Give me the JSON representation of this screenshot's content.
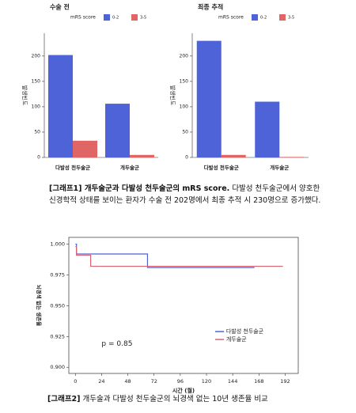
{
  "chart_data": [
    {
      "type": "bar",
      "title": "수술 전",
      "legend_title": "mRS score",
      "y_label": "발생빈도",
      "categories": [
        "다발성 천두술군",
        "개두술군"
      ],
      "series": [
        {
          "name": "0-2",
          "color": "#4f63d8",
          "values": [
            202,
            106
          ]
        },
        {
          "name": "3-5",
          "color": "#e06666",
          "values": [
            33,
            5
          ]
        }
      ],
      "ylim": [
        0,
        245
      ],
      "yticks": [
        0,
        50,
        100,
        150,
        200
      ]
    },
    {
      "type": "bar",
      "title": "최종 추적",
      "legend_title": "mRS score",
      "y_label": "발생빈도",
      "categories": [
        "다발성 천두술군",
        "개두술군"
      ],
      "series": [
        {
          "name": "0-2",
          "color": "#4f63d8",
          "values": [
            230,
            110
          ]
        },
        {
          "name": "3-5",
          "color": "#e06666",
          "values": [
            5,
            1
          ]
        }
      ],
      "ylim": [
        0,
        245
      ],
      "yticks": [
        0,
        50,
        100,
        150,
        200
      ]
    },
    {
      "type": "step",
      "x_label": "시간 (월)",
      "y_label": "뇌경색 없는 생존율",
      "annotation": "p = 0.85",
      "series": [
        {
          "name": "다발성 천두술군",
          "color": "#4f63d8",
          "x": [
            0,
            1,
            66,
            164
          ],
          "values": [
            1.0,
            0.992,
            0.981,
            0.981
          ]
        },
        {
          "name": "개두술군",
          "color": "#d9636e",
          "x": [
            0,
            1,
            14,
            190
          ],
          "values": [
            0.998,
            0.991,
            0.982,
            0.982
          ]
        }
      ],
      "xlim": [
        -6,
        204
      ],
      "xticks": [
        0,
        24,
        48,
        72,
        96,
        120,
        144,
        168,
        192
      ],
      "ylim": [
        0.895,
        1.0055
      ],
      "yticks": [
        {
          "value": 0.9,
          "label": "0.900"
        },
        {
          "value": 0.925,
          "label": "0.925"
        },
        {
          "value": 0.95,
          "label": "0.950"
        },
        {
          "value": 0.975,
          "label": "0.975"
        },
        {
          "value": 1.0,
          "label": "1.000"
        }
      ]
    }
  ],
  "captions": [
    {
      "label": "[그래프1] 개두술군과 다발성 천두술군의 mRS score.",
      "text": "다발성 천두술군에서 양호한 신경학적 상태를 보이는 환자가 수술 전 202명에서 최종 추적 시 230명으로 증가했다."
    },
    {
      "label": "[그래프2]",
      "text": "개두술과 다발성 천두술군의 뇌경색 없는 10년 생존율 비교"
    }
  ]
}
